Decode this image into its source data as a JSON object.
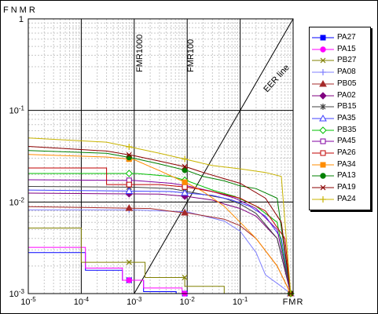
{
  "chart_data": {
    "type": "line",
    "title": "",
    "ylabel": "FNMR",
    "xlabel": "FMR",
    "x_scale": "log",
    "y_scale": "log",
    "xlim": [
      1e-05,
      1
    ],
    "ylim": [
      0.001,
      1
    ],
    "x_ticks": [
      "10^-5",
      "10^-4",
      "10^-3",
      "10^-2",
      "10^-1",
      "FMR"
    ],
    "y_ticks": [
      "10^-3",
      "10^-2",
      "10^-1",
      "1"
    ],
    "grid": true,
    "legend_position": "right",
    "annotations": [
      "FMR1000",
      "FMR100",
      "EER line"
    ],
    "series": [
      {
        "name": "PA27",
        "color": "#0000ff",
        "marker": "square",
        "points": [
          [
            1e-05,
            0.0028
          ],
          [
            0.00012,
            0.0028
          ],
          [
            0.00012,
            0.0018
          ],
          [
            0.0006,
            0.0018
          ],
          [
            0.0006,
            0.0014
          ],
          [
            0.0015,
            0.0014
          ],
          [
            0.0015,
            0.00105
          ],
          [
            0.0062,
            0.00105
          ],
          [
            0.0062,
            0.001
          ],
          [
            0.9,
            0.001
          ]
        ]
      },
      {
        "name": "PA15",
        "color": "#ff00ff",
        "marker": "circle",
        "points": [
          [
            1e-05,
            0.0032
          ],
          [
            0.00012,
            0.0032
          ],
          [
            0.00012,
            0.0019
          ],
          [
            0.0006,
            0.0019
          ],
          [
            0.0006,
            0.0014
          ],
          [
            0.0015,
            0.0014
          ],
          [
            0.0015,
            0.00115
          ],
          [
            0.008,
            0.00115
          ],
          [
            0.008,
            0.001
          ],
          [
            0.9,
            0.001
          ]
        ]
      },
      {
        "name": "PB27",
        "color": "#808000",
        "marker": "x",
        "points": [
          [
            1e-05,
            0.0052
          ],
          [
            0.0001,
            0.0052
          ],
          [
            0.0001,
            0.0022
          ],
          [
            0.0016,
            0.0022
          ],
          [
            0.0016,
            0.0015
          ],
          [
            0.009,
            0.0015
          ],
          [
            0.009,
            0.0012
          ],
          [
            0.05,
            0.0012
          ],
          [
            0.05,
            0.001
          ],
          [
            0.9,
            0.001
          ]
        ]
      },
      {
        "name": "PA08",
        "color": "#8080ff",
        "marker": "plus",
        "points": [
          [
            1e-05,
            0.0082
          ],
          [
            0.001,
            0.0082
          ],
          [
            0.01,
            0.0078
          ],
          [
            0.05,
            0.0062
          ],
          [
            0.1,
            0.0048
          ],
          [
            0.2,
            0.0028
          ],
          [
            0.3,
            0.0016
          ],
          [
            0.6,
            0.0012
          ],
          [
            0.9,
            0.001
          ]
        ]
      },
      {
        "name": "PB05",
        "color": "#a52a2a",
        "marker": "triangle",
        "points": [
          [
            1e-05,
            0.0089
          ],
          [
            0.002,
            0.0085
          ],
          [
            0.006,
            0.0078
          ],
          [
            0.01,
            0.0076
          ],
          [
            0.05,
            0.0065
          ],
          [
            0.1,
            0.0055
          ],
          [
            0.2,
            0.004
          ],
          [
            0.5,
            0.002
          ],
          [
            0.9,
            0.001
          ]
        ]
      },
      {
        "name": "PA02",
        "color": "#800080",
        "marker": "diamond",
        "points": [
          [
            1e-05,
            0.0125
          ],
          [
            0.003,
            0.0122
          ],
          [
            0.01,
            0.0115
          ],
          [
            0.03,
            0.0105
          ],
          [
            0.05,
            0.0095
          ],
          [
            0.1,
            0.0085
          ],
          [
            0.2,
            0.007
          ],
          [
            0.5,
            0.004
          ],
          [
            0.9,
            0.001
          ]
        ]
      },
      {
        "name": "PB15",
        "color": "#404040",
        "marker": "star",
        "points": [
          [
            1e-05,
            0.0148
          ],
          [
            0.001,
            0.0145
          ],
          [
            0.005,
            0.014
          ],
          [
            0.01,
            0.013
          ],
          [
            0.05,
            0.011
          ],
          [
            0.1,
            0.0095
          ],
          [
            0.2,
            0.0075
          ],
          [
            0.5,
            0.004
          ],
          [
            0.9,
            0.001
          ]
        ]
      },
      {
        "name": "PA35",
        "color": "#4040ff",
        "marker": "triangle-open",
        "points": [
          [
            1e-05,
            0.0135
          ],
          [
            0.005,
            0.013
          ],
          [
            0.01,
            0.0125
          ],
          [
            0.03,
            0.0118
          ],
          [
            0.07,
            0.0105
          ],
          [
            0.15,
            0.009
          ],
          [
            0.3,
            0.007
          ],
          [
            0.6,
            0.004
          ],
          [
            0.9,
            0.001
          ]
        ]
      },
      {
        "name": "PB35",
        "color": "#00c000",
        "marker": "diamond-open",
        "points": [
          [
            1e-05,
            0.0205
          ],
          [
            0.0011,
            0.0205
          ],
          [
            0.005,
            0.019
          ],
          [
            0.01,
            0.017
          ],
          [
            0.03,
            0.0135
          ],
          [
            0.08,
            0.0115
          ],
          [
            0.2,
            0.009
          ],
          [
            0.5,
            0.006
          ],
          [
            0.9,
            0.001
          ]
        ]
      },
      {
        "name": "PA45",
        "color": "#8000a0",
        "marker": "square-open",
        "points": [
          [
            1e-05,
            0.0175
          ],
          [
            0.001,
            0.0172
          ],
          [
            0.005,
            0.016
          ],
          [
            0.01,
            0.015
          ],
          [
            0.03,
            0.013
          ],
          [
            0.08,
            0.011
          ],
          [
            0.2,
            0.0085
          ],
          [
            0.5,
            0.005
          ],
          [
            0.9,
            0.001
          ]
        ]
      },
      {
        "name": "PA26",
        "color": "#c00000",
        "marker": "square-open",
        "points": [
          [
            1e-05,
            0.0235
          ],
          [
            0.0003,
            0.0235
          ],
          [
            0.0003,
            0.0155
          ],
          [
            0.003,
            0.0155
          ],
          [
            0.01,
            0.0145
          ],
          [
            0.03,
            0.013
          ],
          [
            0.1,
            0.011
          ],
          [
            0.3,
            0.008
          ],
          [
            0.7,
            0.004
          ],
          [
            0.9,
            0.001
          ]
        ]
      },
      {
        "name": "PA34",
        "color": "#ff8c00",
        "marker": "square",
        "points": [
          [
            1e-05,
            0.033
          ],
          [
            0.0003,
            0.031
          ],
          [
            0.001,
            0.029
          ],
          [
            0.003,
            0.022
          ],
          [
            0.01,
            0.016
          ],
          [
            0.02,
            0.013
          ],
          [
            0.05,
            0.009
          ],
          [
            0.1,
            0.006
          ],
          [
            0.2,
            0.004
          ],
          [
            0.5,
            0.002
          ],
          [
            0.9,
            0.001
          ]
        ]
      },
      {
        "name": "PA13",
        "color": "#008000",
        "marker": "circle",
        "points": [
          [
            1e-05,
            0.0365
          ],
          [
            0.0003,
            0.034
          ],
          [
            0.001,
            0.03
          ],
          [
            0.003,
            0.026
          ],
          [
            0.01,
            0.022
          ],
          [
            0.02,
            0.019
          ],
          [
            0.05,
            0.017
          ],
          [
            0.1,
            0.015
          ],
          [
            0.2,
            0.014
          ],
          [
            0.5,
            0.011
          ],
          [
            0.9,
            0.001
          ]
        ]
      },
      {
        "name": "PA19",
        "color": "#8b0000",
        "marker": "x",
        "points": [
          [
            1e-05,
            0.0405
          ],
          [
            0.0003,
            0.036
          ],
          [
            0.001,
            0.032
          ],
          [
            0.003,
            0.028
          ],
          [
            0.01,
            0.024
          ],
          [
            0.02,
            0.021
          ],
          [
            0.05,
            0.018
          ],
          [
            0.1,
            0.016
          ],
          [
            0.3,
            0.011
          ],
          [
            0.6,
            0.006
          ],
          [
            0.9,
            0.001
          ]
        ]
      },
      {
        "name": "PA24",
        "color": "#c8b400",
        "marker": "plus",
        "points": [
          [
            1e-05,
            0.05
          ],
          [
            0.0003,
            0.045
          ],
          [
            0.001,
            0.039
          ],
          [
            0.003,
            0.034
          ],
          [
            0.01,
            0.029
          ],
          [
            0.03,
            0.025
          ],
          [
            0.1,
            0.023
          ],
          [
            0.3,
            0.021
          ],
          [
            0.6,
            0.019
          ],
          [
            0.9,
            0.001
          ]
        ]
      }
    ]
  }
}
